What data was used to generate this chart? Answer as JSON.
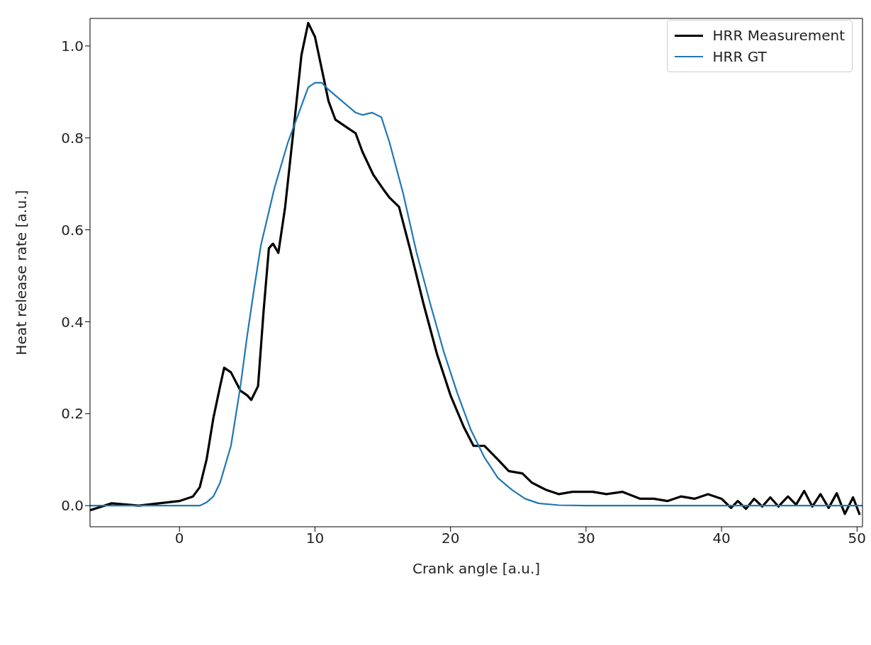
{
  "chart_data": {
    "type": "line",
    "xlabel": "Crank angle [a.u.]",
    "ylabel": "Heat release rate [a.u.]",
    "xlim": [
      -6.6,
      50.4
    ],
    "ylim": [
      -0.046,
      1.06
    ],
    "xticks": [
      0,
      10,
      20,
      30,
      40,
      50
    ],
    "yticks": [
      {
        "value": 0,
        "label": "0.0"
      },
      {
        "value": 0.2,
        "label": "0.2"
      },
      {
        "value": 0.4,
        "label": "0.4"
      },
      {
        "value": 0.6,
        "label": "0.6"
      },
      {
        "value": 0.8,
        "label": "0.8"
      },
      {
        "value": 1.0,
        "label": "1.0"
      }
    ],
    "grid": false,
    "legend": "top right",
    "marker": "none",
    "line_style": "solid",
    "series": [
      {
        "name": "HRR Measurement",
        "color": "#000000",
        "x": [
          -6.6,
          -5,
          -3,
          0,
          1,
          1.5,
          2,
          2.5,
          3,
          3.3,
          3.8,
          4.5,
          5,
          5.3,
          5.8,
          6.2,
          6.6,
          6.9,
          7.3,
          7.8,
          8.5,
          9,
          9.5,
          10,
          10.5,
          11,
          11.5,
          12.5,
          13,
          13.5,
          14.3,
          15,
          15.5,
          16.2,
          17,
          18,
          19,
          20,
          21,
          21.7,
          22.5,
          23.5,
          24.3,
          25.3,
          26,
          27,
          28,
          29,
          30.5,
          31.5,
          32.7,
          34,
          35,
          36,
          37,
          38,
          39,
          40,
          40.7,
          41.2,
          41.8,
          42.4,
          43,
          43.6,
          44.2,
          44.9,
          45.5,
          46.1,
          46.7,
          47.3,
          47.9,
          48.5,
          49.1,
          49.7,
          50.2
        ],
        "values": [
          -0.01,
          0.005,
          0,
          0.01,
          0.02,
          0.04,
          0.1,
          0.19,
          0.26,
          0.3,
          0.29,
          0.25,
          0.24,
          0.23,
          0.26,
          0.42,
          0.56,
          0.57,
          0.55,
          0.65,
          0.84,
          0.98,
          1.05,
          1.02,
          0.95,
          0.88,
          0.84,
          0.82,
          0.81,
          0.77,
          0.72,
          0.69,
          0.67,
          0.65,
          0.56,
          0.44,
          0.33,
          0.24,
          0.17,
          0.13,
          0.13,
          0.1,
          0.075,
          0.07,
          0.05,
          0.035,
          0.025,
          0.03,
          0.03,
          0.025,
          0.03,
          0.015,
          0.015,
          0.01,
          0.02,
          0.015,
          0.025,
          0.015,
          -0.005,
          0.01,
          -0.007,
          0.015,
          -0.002,
          0.018,
          -0.002,
          0.02,
          0.002,
          0.032,
          -0.002,
          0.025,
          -0.005,
          0.027,
          -0.018,
          0.018,
          -0.02
        ]
      },
      {
        "name": "HRR GT",
        "color": "#1f77b4",
        "x": [
          -6.6,
          1.5,
          2,
          2.5,
          3,
          3.8,
          4.5,
          5,
          5.5,
          6,
          7,
          8,
          9,
          9.5,
          10,
          10.5,
          11,
          12,
          13,
          13.5,
          14.2,
          14.9,
          15.5,
          16.5,
          17.5,
          18.5,
          19.5,
          20.5,
          21.5,
          22.5,
          23.5,
          24.5,
          25.5,
          26.5,
          28,
          30,
          50.4
        ],
        "values": [
          0,
          0,
          0.007,
          0.02,
          0.05,
          0.13,
          0.26,
          0.37,
          0.47,
          0.565,
          0.69,
          0.79,
          0.87,
          0.91,
          0.92,
          0.92,
          0.905,
          0.88,
          0.855,
          0.85,
          0.855,
          0.845,
          0.79,
          0.68,
          0.55,
          0.44,
          0.335,
          0.245,
          0.165,
          0.105,
          0.06,
          0.035,
          0.015,
          0.005,
          0.001,
          0,
          0
        ]
      }
    ]
  }
}
